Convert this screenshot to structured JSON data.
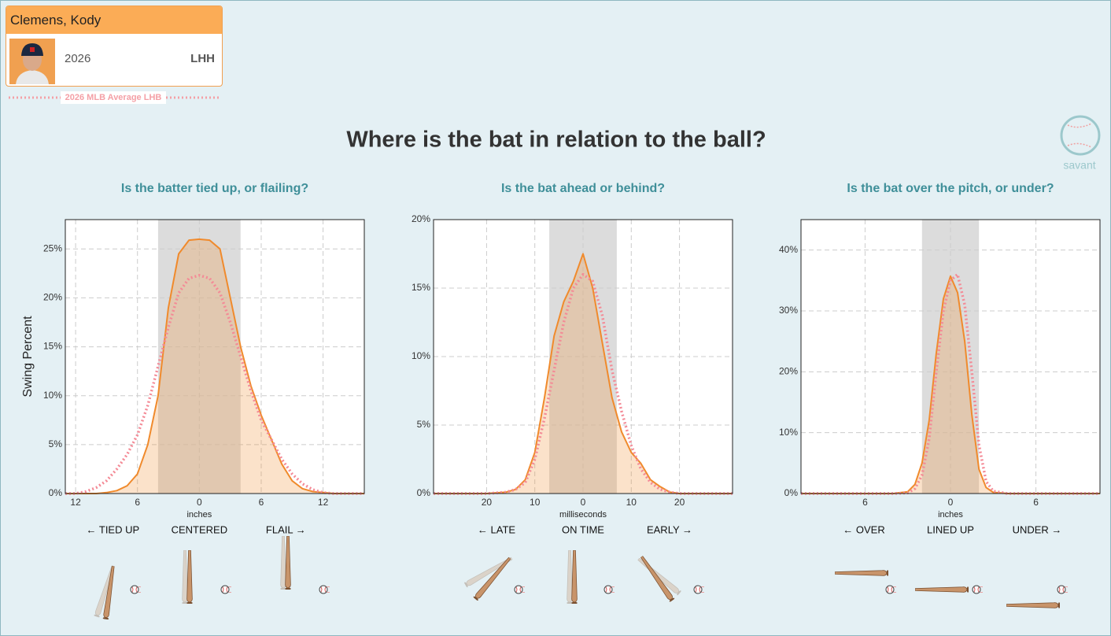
{
  "player": {
    "name": "Clemens, Kody",
    "year": "2026",
    "hand": "LHH"
  },
  "legend": {
    "label": "2026 MLB Average LHB"
  },
  "title": "Where is the bat in relation to the ball?",
  "logo": "savant",
  "chart_data": [
    {
      "type": "area",
      "title": "Is the batter tied up, or flailing?",
      "y_label": "Swing Percent",
      "x_label": "inches",
      "xlim": [
        -13,
        16
      ],
      "ylim": [
        0,
        28
      ],
      "grid": true,
      "band": [
        -4,
        4
      ],
      "xticks": [
        {
          "value": -12,
          "label": "12"
        },
        {
          "value": -6,
          "label": "6"
        },
        0,
        6,
        12
      ],
      "yticks": [
        {
          "value": 0,
          "label": "0%"
        },
        {
          "value": 5,
          "label": "5%"
        },
        {
          "value": 10,
          "label": "10%"
        },
        {
          "value": 15,
          "label": "15%"
        },
        {
          "value": 20,
          "label": "20%"
        },
        {
          "value": 25,
          "label": "25%"
        }
      ],
      "zone_labels": [
        "← TIED UP",
        "CENTERED",
        "FLAIL →"
      ],
      "x": [
        -13,
        -12,
        -11,
        -10,
        -9,
        -8,
        -7,
        -6,
        -5,
        -4,
        -3,
        -2,
        -1,
        0,
        1,
        2,
        3,
        4,
        5,
        6,
        7,
        8,
        9,
        10,
        11,
        12,
        13,
        14,
        15,
        16
      ],
      "series": [
        {
          "color": "#f08a2c",
          "style": "solid",
          "values": [
            0,
            0,
            0,
            0,
            0.1,
            0.3,
            0.8,
            2,
            5,
            10,
            19,
            24.5,
            25.9,
            26,
            25.9,
            25,
            20,
            15,
            11,
            8,
            5.5,
            3,
            1.3,
            0.5,
            0.2,
            0.1,
            0,
            0,
            0,
            0
          ]
        },
        {
          "color": "#f48a96",
          "style": "dotted",
          "values": [
            0,
            0,
            0.2,
            0.6,
            1.3,
            2.5,
            4,
            6,
            9,
            13,
            17,
            20.5,
            22,
            22.3,
            22,
            20.5,
            17.5,
            14,
            10.5,
            7.5,
            5.5,
            3.5,
            2,
            1,
            0.4,
            0.1,
            0,
            0,
            0,
            0
          ]
        }
      ]
    },
    {
      "type": "area",
      "title": "Is the bat ahead or behind?",
      "x_label": "milliseconds",
      "xlim": [
        -31,
        31
      ],
      "ylim": [
        0,
        20
      ],
      "grid": true,
      "band": [
        -7,
        7
      ],
      "xticks": [
        {
          "value": -20,
          "label": "20"
        },
        {
          "value": -10,
          "label": "10"
        },
        0,
        10,
        20
      ],
      "yticks": [
        {
          "value": 0,
          "label": "0%"
        },
        {
          "value": 5,
          "label": "5%"
        },
        {
          "value": 10,
          "label": "10%"
        },
        {
          "value": 15,
          "label": "15%"
        },
        {
          "value": 20,
          "label": "20%"
        }
      ],
      "zone_labels": [
        "← LATE",
        "ON TIME",
        "EARLY →"
      ],
      "x": [
        -31,
        -20,
        -16,
        -14,
        -12,
        -10,
        -8,
        -6,
        -4,
        -2,
        0,
        2,
        4,
        6,
        8,
        10,
        12,
        14,
        16,
        18,
        20,
        31
      ],
      "series": [
        {
          "color": "#f08a2c",
          "style": "solid",
          "values": [
            0,
            0,
            0.1,
            0.3,
            1,
            3,
            7,
            11.5,
            14,
            15.5,
            17.5,
            15,
            11,
            7,
            4.5,
            3,
            2.2,
            1,
            0.5,
            0.1,
            0,
            0
          ]
        },
        {
          "color": "#f48a96",
          "style": "dotted",
          "values": [
            0,
            0,
            0.1,
            0.3,
            0.8,
            2.5,
            5.5,
            9,
            12.5,
            15,
            16,
            15.5,
            13,
            9,
            6,
            3.5,
            1.8,
            0.8,
            0.3,
            0.1,
            0,
            0
          ]
        }
      ]
    },
    {
      "type": "area",
      "title": "Is the bat over the pitch, or under?",
      "x_label": "inches",
      "xlim": [
        -10.5,
        10.5
      ],
      "ylim": [
        0,
        45
      ],
      "grid": true,
      "band": [
        -2,
        2
      ],
      "xticks": [
        {
          "value": -6,
          "label": "6"
        },
        0,
        6
      ],
      "yticks": [
        {
          "value": 0,
          "label": "0%"
        },
        {
          "value": 10,
          "label": "10%"
        },
        {
          "value": 20,
          "label": "20%"
        },
        {
          "value": 30,
          "label": "30%"
        },
        {
          "value": 40,
          "label": "40%"
        }
      ],
      "zone_labels": [
        "← OVER",
        "LINED UP",
        "UNDER →"
      ],
      "x": [
        -10.5,
        -4,
        -3,
        -2.5,
        -2,
        -1.5,
        -1,
        -0.5,
        0,
        0.5,
        1,
        1.5,
        2,
        2.5,
        3,
        4,
        10.5
      ],
      "series": [
        {
          "color": "#f08a2c",
          "style": "solid",
          "values": [
            0,
            0,
            0.3,
            1.5,
            5,
            12,
            23,
            32,
            35.7,
            33,
            25,
            13,
            4,
            1,
            0.2,
            0,
            0
          ]
        },
        {
          "color": "#f48a96",
          "style": "dotted",
          "values": [
            0,
            0,
            0.1,
            0.8,
            3,
            9,
            20,
            30,
            35,
            36,
            31,
            20,
            8,
            2,
            0.4,
            0,
            0
          ]
        }
      ]
    }
  ]
}
